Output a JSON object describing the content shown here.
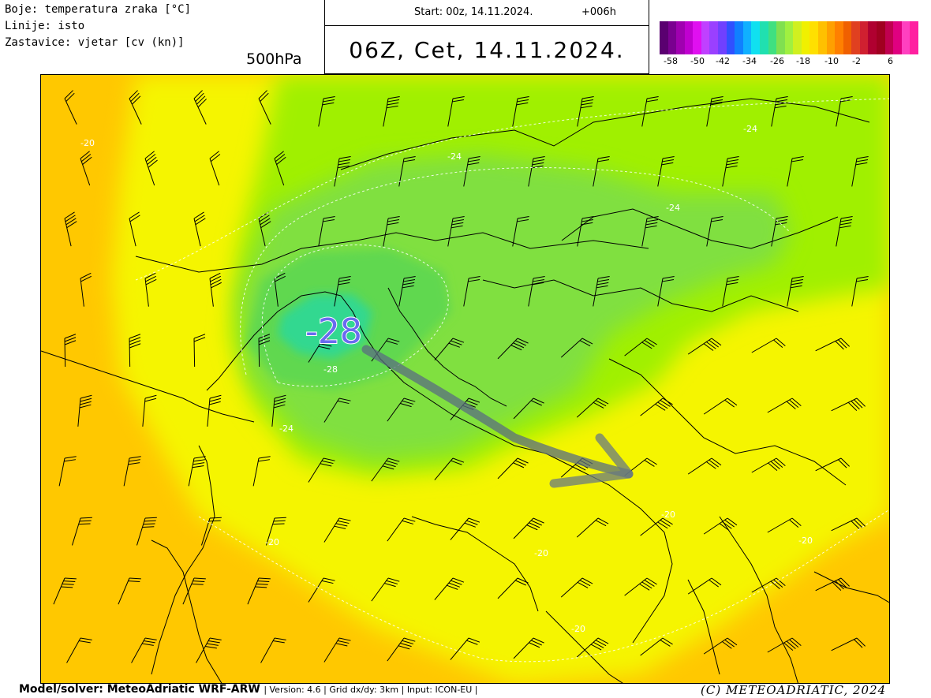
{
  "legend_text": {
    "colors_line": "Boje: temperatura zraka [°C]",
    "lines_line": "Linije: isto",
    "flags_line": "Zastavice: vjetar [cv (kn)]"
  },
  "level": "500hPa",
  "run": {
    "start": "Start: 00z, 14.11.2024.",
    "lead": "+006h"
  },
  "valid_time": "06Z, Cet, 14.11.2024.",
  "scale": {
    "tick_labels": [
      "-58",
      "-50",
      "-42",
      "-34",
      "-26",
      "-18",
      "-10",
      "-2",
      "6"
    ],
    "colors": [
      "#5a0070",
      "#7a0090",
      "#a000b0",
      "#c000d0",
      "#e010f0",
      "#c040ff",
      "#9a40ff",
      "#7040ff",
      "#3050ff",
      "#1080ff",
      "#10b0ff",
      "#10e0f0",
      "#20e0b0",
      "#40e080",
      "#80e050",
      "#a0f040",
      "#d0f020",
      "#f0f000",
      "#ffe000",
      "#ffc000",
      "#ffa000",
      "#ff8000",
      "#f06000",
      "#e04020",
      "#d02030",
      "#b00030",
      "#a00020",
      "#c00050",
      "#e00080",
      "#ff40c0",
      "#ff20a0"
    ]
  },
  "map": {
    "center_label": "-28",
    "contour_labels": [
      "-20",
      "-24",
      "-24",
      "-24",
      "-24",
      "-28",
      "-20",
      "-20",
      "-20",
      "-20",
      "-20"
    ],
    "field_colors": {
      "warm": "#ffc800",
      "yellow": "#f5f500",
      "lime": "#a0f000",
      "green": "#80e040",
      "mid_green": "#60d850",
      "cold": "#30d890",
      "arrow": "#5a6e80"
    }
  },
  "footer": {
    "model": "Model/solver: MeteoAdriatic WRF-ARW",
    "meta": "| Version: 4.6 | Grid dx/dy: 3km | Input: ICON-EU |",
    "copyright": "(C) METEOADRIATIC, 2024"
  }
}
